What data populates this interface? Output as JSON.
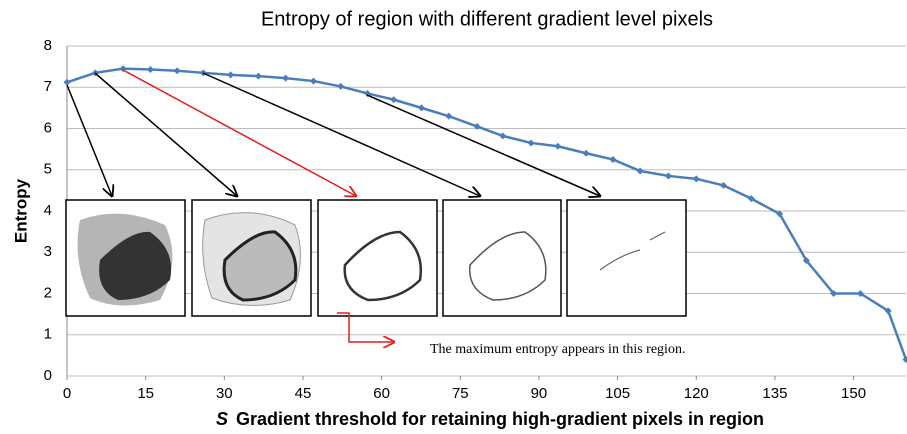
{
  "chart_data": {
    "type": "line",
    "title": "Entropy of region with different gradient level pixels",
    "x_label_symbol": "S",
    "x_label": "Gradient threshold for retaining high-gradient pixels in region",
    "y_label": "Entropy",
    "annotation": "The maximum entropy  appears in this region.",
    "x": [
      0,
      5.4,
      10.7,
      15.9,
      21.0,
      26.0,
      31.2,
      36.5,
      41.7,
      47.0,
      52.2,
      57.3,
      62.3,
      67.6,
      72.8,
      78.2,
      83.1,
      88.5,
      93.6,
      99.0,
      104.1,
      109.3,
      114.7,
      120.0,
      125.2,
      130.5,
      135.9,
      141.0,
      146.2,
      151.3,
      156.6,
      160
    ],
    "series": [
      {
        "name": "Entropy",
        "color": "#4a7ebb",
        "values": [
          7.12,
          7.35,
          7.45,
          7.43,
          7.4,
          7.35,
          7.3,
          7.27,
          7.22,
          7.15,
          7.02,
          6.85,
          6.7,
          6.5,
          6.3,
          6.05,
          5.82,
          5.65,
          5.57,
          5.4,
          5.25,
          4.97,
          4.85,
          4.78,
          4.62,
          4.3,
          3.93,
          2.8,
          2.0,
          2.0,
          1.58,
          0.4
        ]
      }
    ],
    "xlim": [
      0,
      160
    ],
    "xticks": [
      0,
      15,
      30,
      45,
      60,
      75,
      90,
      105,
      120,
      135,
      150
    ],
    "ylim": [
      0,
      8
    ],
    "yticks": [
      0,
      1,
      2,
      3,
      4,
      5,
      6,
      7,
      8
    ],
    "grid": true
  }
}
